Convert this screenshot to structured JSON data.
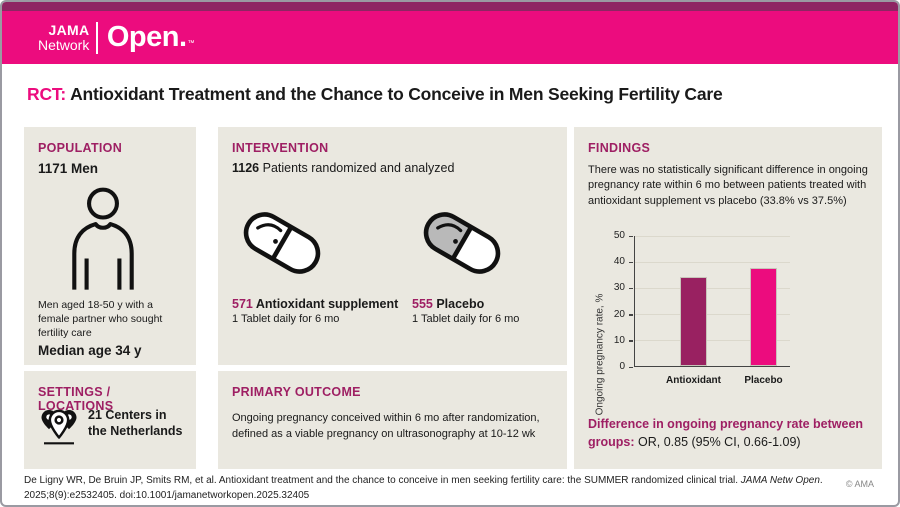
{
  "header": {
    "logo": {
      "line1": "JAMA",
      "line2": "Network",
      "brand": "Open.",
      "tm": "™"
    },
    "colors": {
      "bar": "#EC0C7E",
      "top_strip": "#8E2563"
    }
  },
  "title": {
    "prefix": "RCT:",
    "text": "Antioxidant Treatment and the Chance to Conceive in Men Seeking Fertility Care"
  },
  "panels": {
    "population": {
      "heading": "POPULATION",
      "count": "1171 Men",
      "icon": "person-icon",
      "description": "Men aged 18-50 y with a female partner who sought fertility care",
      "median": "Median age 34 y"
    },
    "intervention": {
      "heading": "INTERVENTION",
      "count": "1126",
      "count_suffix": "Patients randomized and analyzed",
      "arms": [
        {
          "n": "571",
          "name": "Antioxidant supplement",
          "detail": "1 Tablet daily for 6 mo",
          "pill_fill": "#ffffff"
        },
        {
          "n": "555",
          "name": "Placebo",
          "detail": "1 Tablet daily for 6 mo",
          "pill_fill": "#b9b9b9"
        }
      ]
    },
    "findings": {
      "heading": "FINDINGS",
      "text": "There was no statistically significant difference in ongoing pregnancy rate within 6 mo between patients treated with antioxidant supplement vs placebo (33.8% vs 37.5%)",
      "difference_label": "Difference in ongoing pregnancy rate between groups:",
      "difference_value": "OR, 0.85 (95% CI, 0.66-1.09)"
    },
    "settings": {
      "heading": "SETTINGS / LOCATIONS",
      "icon": "map-pins-icon",
      "text": "21 Centers in the Netherlands"
    },
    "primary_outcome": {
      "heading": "PRIMARY OUTCOME",
      "text": "Ongoing pregnancy conceived within 6 mo after randomization, defined as a viable pregnancy on ultrasonography at 10-12 wk"
    }
  },
  "chart_data": {
    "type": "bar",
    "categories": [
      "Antioxidant",
      "Placebo"
    ],
    "values": [
      33.8,
      37.5
    ],
    "title": "",
    "xlabel": "",
    "ylabel": "Ongoing pregnancy rate, %",
    "ylim": [
      0,
      50
    ],
    "yticks": [
      0,
      10,
      20,
      30,
      40,
      50
    ],
    "bar_colors": [
      "#992161",
      "#EC0C7E"
    ],
    "grid": true,
    "legend": false
  },
  "footer": {
    "citation_plain1": "De Ligny WR, De Bruin JP, Smits RM, et al. Antioxidant treatment and the chance to conceive in men seeking fertility care: the SUMMER randomized clinical trial. ",
    "citation_italic": "JAMA Netw Open",
    "citation_plain2": ". 2025;8(9):e2532405. doi:10.1001/jamanetworkopen.2025.32405",
    "copyright": "© AMA"
  }
}
